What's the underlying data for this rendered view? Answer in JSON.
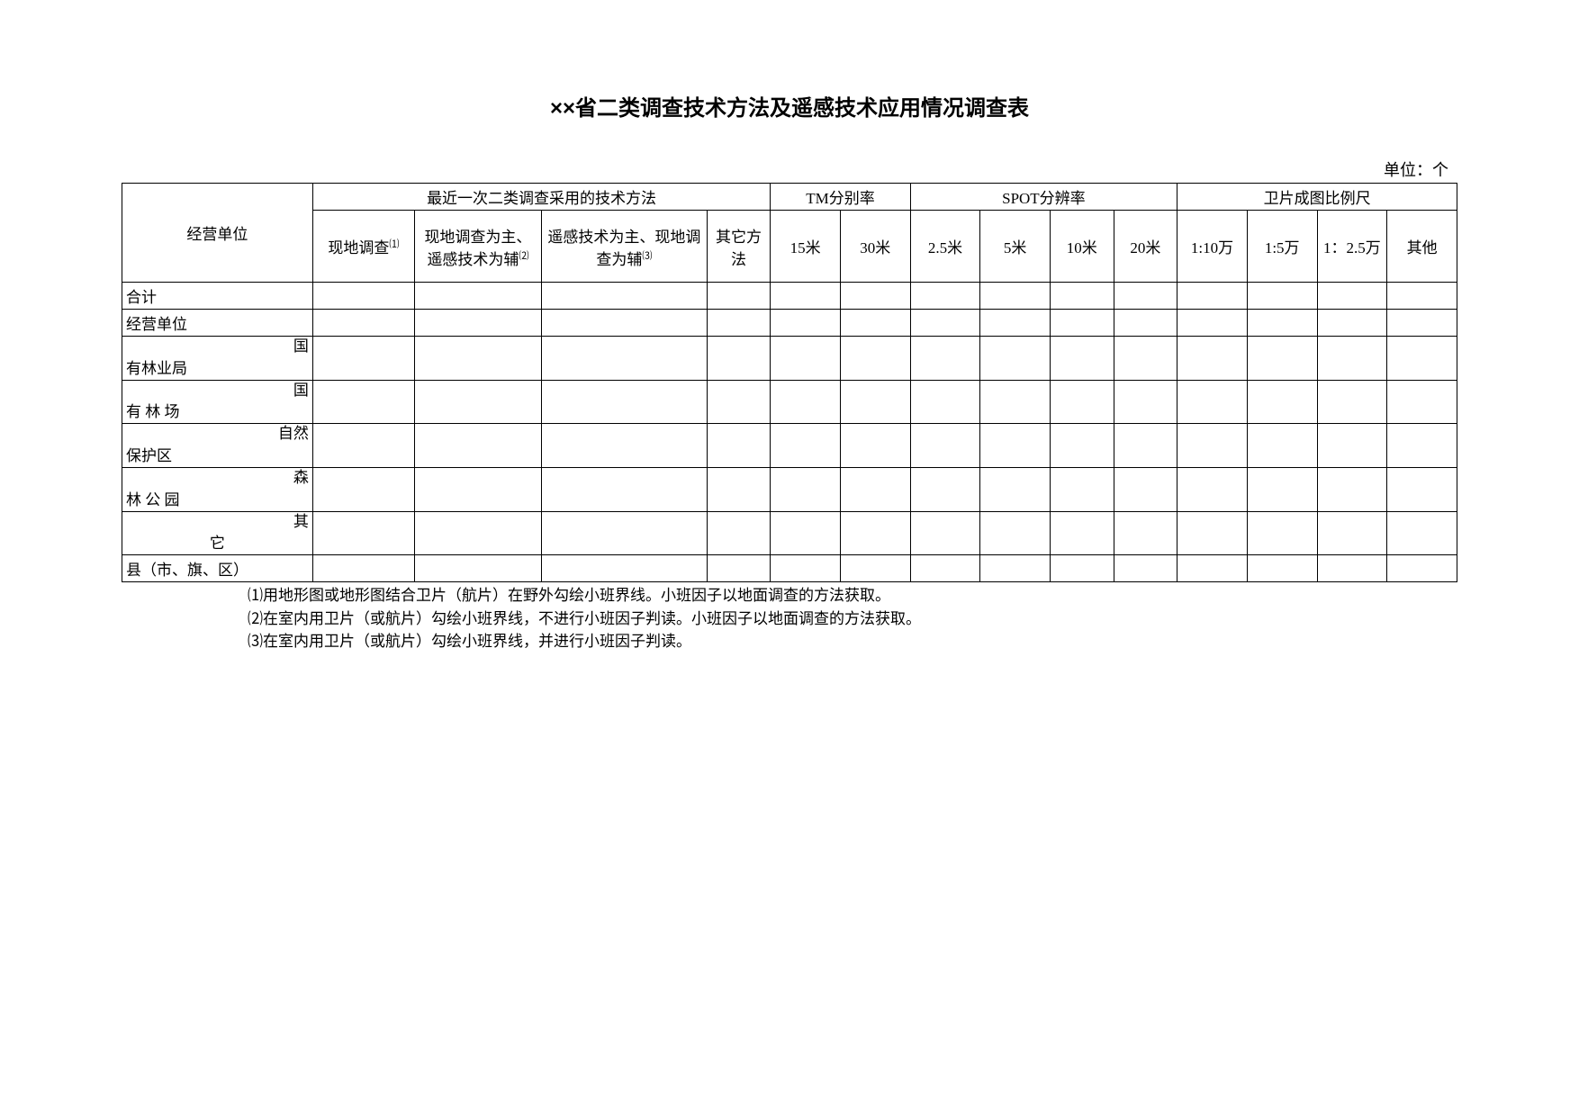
{
  "title": "××省二类调查技术方法及遥感技术应用情况调查表",
  "unit_label": "单位：个",
  "headers": {
    "col1": "经营单位",
    "group1": "最近一次二类调查采用的技术方法",
    "group2": "TM分别率",
    "group3": "SPOT分辨率",
    "group4": "卫片成图比例尺",
    "m1_a": "现地调查",
    "m1_sup": "⑴",
    "m2": "现地调查为主、遥感技术为辅",
    "m2_sup": "⑵",
    "m3_a": "遥感技术为主、现地调查为辅",
    "m3_sup": "⑶",
    "m4": "其它方法",
    "tm1": "15米",
    "tm2": "30米",
    "sp1": "2.5米",
    "sp2": "5米",
    "sp3": "10米",
    "sp4": "20米",
    "sc1": "1:10万",
    "sc2": "1:5万",
    "sc3": "1：2.5万",
    "sc4": "其他"
  },
  "rows": {
    "r1": "合计",
    "r2": "经营单位",
    "r3_left": "有林业局",
    "r3_right": "国",
    "r4_left": "有 林 场",
    "r4_right": "国",
    "r5_left": "保护区",
    "r5_right": "自然",
    "r6_left": "林 公 园",
    "r6_right": "森",
    "r7_left": "它",
    "r7_right": "其",
    "r8": "县（市、旗、区）"
  },
  "notes": {
    "n1": "⑴用地形图或地形图结合卫片（航片）在野外勾绘小班界线。小班因子以地面调查的方法获取。",
    "n2": "⑵在室内用卫片（或航片）勾绘小班界线，不进行小班因子判读。小班因子以地面调查的方法获取。",
    "n3": "⑶在室内用卫片（或航片）勾绘小班界线，并进行小班因子判读。"
  }
}
